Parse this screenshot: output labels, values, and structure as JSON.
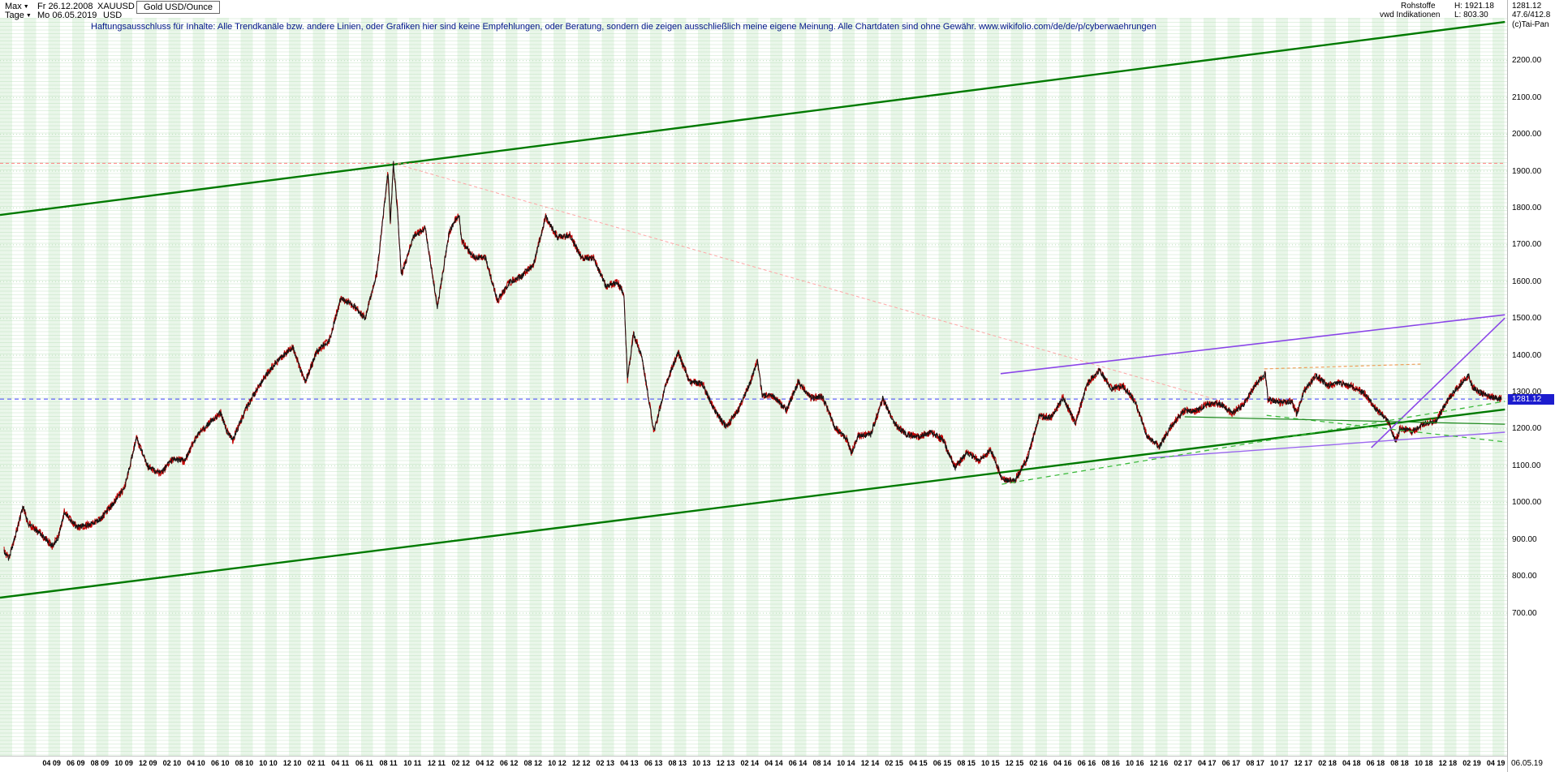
{
  "ui": {
    "caret_down": "▼"
  },
  "header": {
    "range_label": "Max",
    "start_date": "Fr 26.12.2008",
    "period_label": "Tage",
    "end_date": "Mo 06.05.2019",
    "symbol": "XAUUSD",
    "currency": "USD",
    "instrument": "Gold USD/Ounce",
    "category": "Rohstoffe",
    "source": "vwd Indikationen",
    "high_label": "H: 1921.18",
    "low_label": "L: 803.30",
    "last_price": "1281.12",
    "change": "47.6/412.8",
    "copyright": "(c)Tai-Pan",
    "disclaimer": "Haftungsausschluss für Inhalte: Alle Trendkanäle bzw. andere Linien, oder Grafiken hier sind keine Empfehlungen, oder Beratung, sondern die zeigen ausschließlich meine eigene Meinung. Alle Chartdaten sind ohne Gewähr.  www.wikifolio.com/de/de/p/cyberwaehrungen"
  },
  "axis": {
    "current_price_label": "1281.12",
    "bottom_right_date": "06.05.19"
  },
  "chart_data": {
    "type": "line",
    "title": "XAUUSD Gold USD/Ounce",
    "x_start": "2008-12-26",
    "x_end": "2019-05-06",
    "ylim": [
      650,
      2300
    ],
    "last_price": 1281.12,
    "period_high": 1921.18,
    "period_low": 803.3,
    "y_ticks": [
      2200,
      2100,
      2000,
      1900,
      1800,
      1700,
      1600,
      1500,
      1400,
      1300,
      1200,
      1100,
      1000,
      900,
      800,
      700
    ],
    "x_tick_labels": [
      "04 09",
      "06 09",
      "08 09",
      "10 09",
      "12 09",
      "02 10",
      "04 10",
      "06 10",
      "08 10",
      "10 10",
      "12 10",
      "02 11",
      "04 11",
      "06 11",
      "08 11",
      "10 11",
      "12 11",
      "02 12",
      "04 12",
      "06 12",
      "08 12",
      "10 12",
      "12 12",
      "02 13",
      "04 13",
      "06 13",
      "08 13",
      "10 13",
      "12 13",
      "02 14",
      "04 14",
      "06 14",
      "08 14",
      "10 14",
      "12 14",
      "02 15",
      "04 15",
      "06 15",
      "08 15",
      "10 15",
      "12 15",
      "02 16",
      "04 16",
      "06 16",
      "08 16",
      "10 16",
      "12 16",
      "02 17",
      "04 17",
      "06 17",
      "08 17",
      "10 17",
      "12 17",
      "02 18",
      "04 18",
      "06 18",
      "08 18",
      "10 18",
      "12 18",
      "02 19",
      "04 19"
    ],
    "series": [
      {
        "name": "XAUUSD daily (anchor points: months since 2008-12, price USD/oz)",
        "points": [
          [
            0,
            870
          ],
          [
            0.4,
            846
          ],
          [
            1,
            920
          ],
          [
            1.6,
            989
          ],
          [
            2,
            943
          ],
          [
            3,
            916
          ],
          [
            4,
            883
          ],
          [
            4.5,
            905
          ],
          [
            5,
            975
          ],
          [
            6,
            934
          ],
          [
            7,
            939
          ],
          [
            8,
            955
          ],
          [
            9,
            995
          ],
          [
            10,
            1040
          ],
          [
            11,
            1175
          ],
          [
            12,
            1096
          ],
          [
            13,
            1078
          ],
          [
            14,
            1118
          ],
          [
            15,
            1113
          ],
          [
            16,
            1179
          ],
          [
            17,
            1215
          ],
          [
            18,
            1244
          ],
          [
            18.5,
            1196
          ],
          [
            19,
            1169
          ],
          [
            20,
            1248
          ],
          [
            21,
            1307
          ],
          [
            22,
            1357
          ],
          [
            23,
            1395
          ],
          [
            24,
            1421
          ],
          [
            25,
            1327
          ],
          [
            26,
            1411
          ],
          [
            27,
            1439
          ],
          [
            28,
            1556
          ],
          [
            29,
            1536
          ],
          [
            30,
            1500
          ],
          [
            31,
            1628
          ],
          [
            31.9,
            1898
          ],
          [
            32.1,
            1760
          ],
          [
            32.35,
            1921
          ],
          [
            32.7,
            1790
          ],
          [
            33,
            1620
          ],
          [
            33.4,
            1655
          ],
          [
            34,
            1722
          ],
          [
            35,
            1746
          ],
          [
            36,
            1531
          ],
          [
            37,
            1737
          ],
          [
            37.8,
            1784
          ],
          [
            38,
            1711
          ],
          [
            39,
            1668
          ],
          [
            40,
            1664
          ],
          [
            41,
            1548
          ],
          [
            42,
            1598
          ],
          [
            43,
            1615
          ],
          [
            44,
            1648
          ],
          [
            45,
            1776
          ],
          [
            46,
            1720
          ],
          [
            47,
            1726
          ],
          [
            48,
            1664
          ],
          [
            49,
            1664
          ],
          [
            50,
            1588
          ],
          [
            51,
            1598
          ],
          [
            51.5,
            1565
          ],
          [
            51.8,
            1335
          ],
          [
            52.3,
            1460
          ],
          [
            53,
            1394
          ],
          [
            54,
            1192
          ],
          [
            55,
            1323
          ],
          [
            56,
            1407
          ],
          [
            57,
            1326
          ],
          [
            58,
            1324
          ],
          [
            59,
            1253
          ],
          [
            60,
            1205
          ],
          [
            61,
            1251
          ],
          [
            62,
            1326
          ],
          [
            62.6,
            1385
          ],
          [
            63,
            1291
          ],
          [
            64,
            1288
          ],
          [
            65,
            1250
          ],
          [
            66,
            1327
          ],
          [
            67,
            1285
          ],
          [
            68,
            1287
          ],
          [
            69,
            1208
          ],
          [
            70,
            1173
          ],
          [
            70.4,
            1135
          ],
          [
            71,
            1182
          ],
          [
            72,
            1184
          ],
          [
            73,
            1283
          ],
          [
            74,
            1213
          ],
          [
            75,
            1183
          ],
          [
            76,
            1180
          ],
          [
            77,
            1191
          ],
          [
            78,
            1171
          ],
          [
            79,
            1095
          ],
          [
            80,
            1135
          ],
          [
            81,
            1115
          ],
          [
            82,
            1142
          ],
          [
            83,
            1061
          ],
          [
            84,
            1060
          ],
          [
            85,
            1118
          ],
          [
            86,
            1234
          ],
          [
            87,
            1232
          ],
          [
            88,
            1285
          ],
          [
            89,
            1215
          ],
          [
            90,
            1322
          ],
          [
            91,
            1360
          ],
          [
            92,
            1309
          ],
          [
            93,
            1316
          ],
          [
            94,
            1272
          ],
          [
            95,
            1178
          ],
          [
            96,
            1152
          ],
          [
            97,
            1210
          ],
          [
            98,
            1248
          ],
          [
            99,
            1249
          ],
          [
            100,
            1268
          ],
          [
            101,
            1269
          ],
          [
            102,
            1242
          ],
          [
            103,
            1267
          ],
          [
            104,
            1321
          ],
          [
            104.8,
            1350
          ],
          [
            105,
            1280
          ],
          [
            106,
            1271
          ],
          [
            107,
            1275
          ],
          [
            107.4,
            1241
          ],
          [
            108,
            1303
          ],
          [
            109,
            1345
          ],
          [
            110,
            1318
          ],
          [
            111,
            1325
          ],
          [
            112,
            1315
          ],
          [
            113,
            1298
          ],
          [
            114,
            1253
          ],
          [
            115,
            1224
          ],
          [
            115.6,
            1167
          ],
          [
            116,
            1201
          ],
          [
            117,
            1192
          ],
          [
            118,
            1215
          ],
          [
            119,
            1222
          ],
          [
            120,
            1282
          ],
          [
            121,
            1321
          ],
          [
            121.7,
            1346
          ],
          [
            122,
            1313
          ],
          [
            123,
            1292
          ],
          [
            124,
            1283
          ],
          [
            124.4,
            1281.12
          ]
        ]
      }
    ],
    "overlays": [
      {
        "name": "trend-channel-upper",
        "m1": -0.34,
        "p1": 1781,
        "m2": 124.7,
        "p2": 2305,
        "color": "#007a00",
        "width": 2.4
      },
      {
        "name": "trend-channel-lower",
        "m1": -0.34,
        "p1": 742,
        "m2": 124.7,
        "p2": 1253,
        "color": "#007a00",
        "width": 2.4
      },
      {
        "name": "ath-resistance-dashed",
        "m1": -0.34,
        "p1": 1921.18,
        "m2": 124.7,
        "p2": 1921.18,
        "color": "#ff8080",
        "width": 1,
        "dash": "4,3"
      },
      {
        "name": "downtrend-from-ath-dashed",
        "m1": 32.7,
        "p1": 1918,
        "m2": 100.8,
        "p2": 1279,
        "color": "#ffa6a6",
        "width": 1,
        "dash": "4,3"
      },
      {
        "name": "current-price-dashed",
        "m1": -0.34,
        "p1": 1281.12,
        "m2": 124.7,
        "p2": 1281.12,
        "color": "#4545ff",
        "width": 1,
        "dash": "5,4"
      },
      {
        "name": "violet-resistance",
        "m1": 82.8,
        "p1": 1350,
        "m2": 124.7,
        "p2": 1510,
        "color": "#8a46e8",
        "width": 1.6,
        "above": true
      },
      {
        "name": "violet-steep-support",
        "m1": 113.6,
        "p1": 1149,
        "m2": 124.7,
        "p2": 1501,
        "color": "#8a46e8",
        "width": 1.6,
        "above": true
      },
      {
        "name": "violet-lower-line",
        "m1": 95.1,
        "p1": 1121,
        "m2": 124.7,
        "p2": 1191,
        "color": "#9a66ee",
        "width": 1.4,
        "above": true
      },
      {
        "name": "green-support-dashed",
        "m1": 82.9,
        "p1": 1050,
        "m2": 124.7,
        "p2": 1275,
        "color": "#3dbb3d",
        "width": 1.3,
        "dash": "6,5",
        "above": true
      },
      {
        "name": "green-wedge-dashed",
        "m1": 104.9,
        "p1": 1237,
        "m2": 124.7,
        "p2": 1165,
        "color": "#3dbb3d",
        "width": 1.3,
        "dash": "6,5",
        "above": true
      },
      {
        "name": "green-thin-line",
        "m1": 98.1,
        "p1": 1233,
        "m2": 124.7,
        "p2": 1213,
        "color": "#1f8a1f",
        "width": 1.2,
        "above": true
      },
      {
        "name": "orange-range-dashed",
        "m1": 104.7,
        "p1": 1363,
        "m2": 117.7,
        "p2": 1376,
        "color": "#eda05a",
        "width": 1.2,
        "dash": "4,3",
        "above": true
      }
    ]
  }
}
